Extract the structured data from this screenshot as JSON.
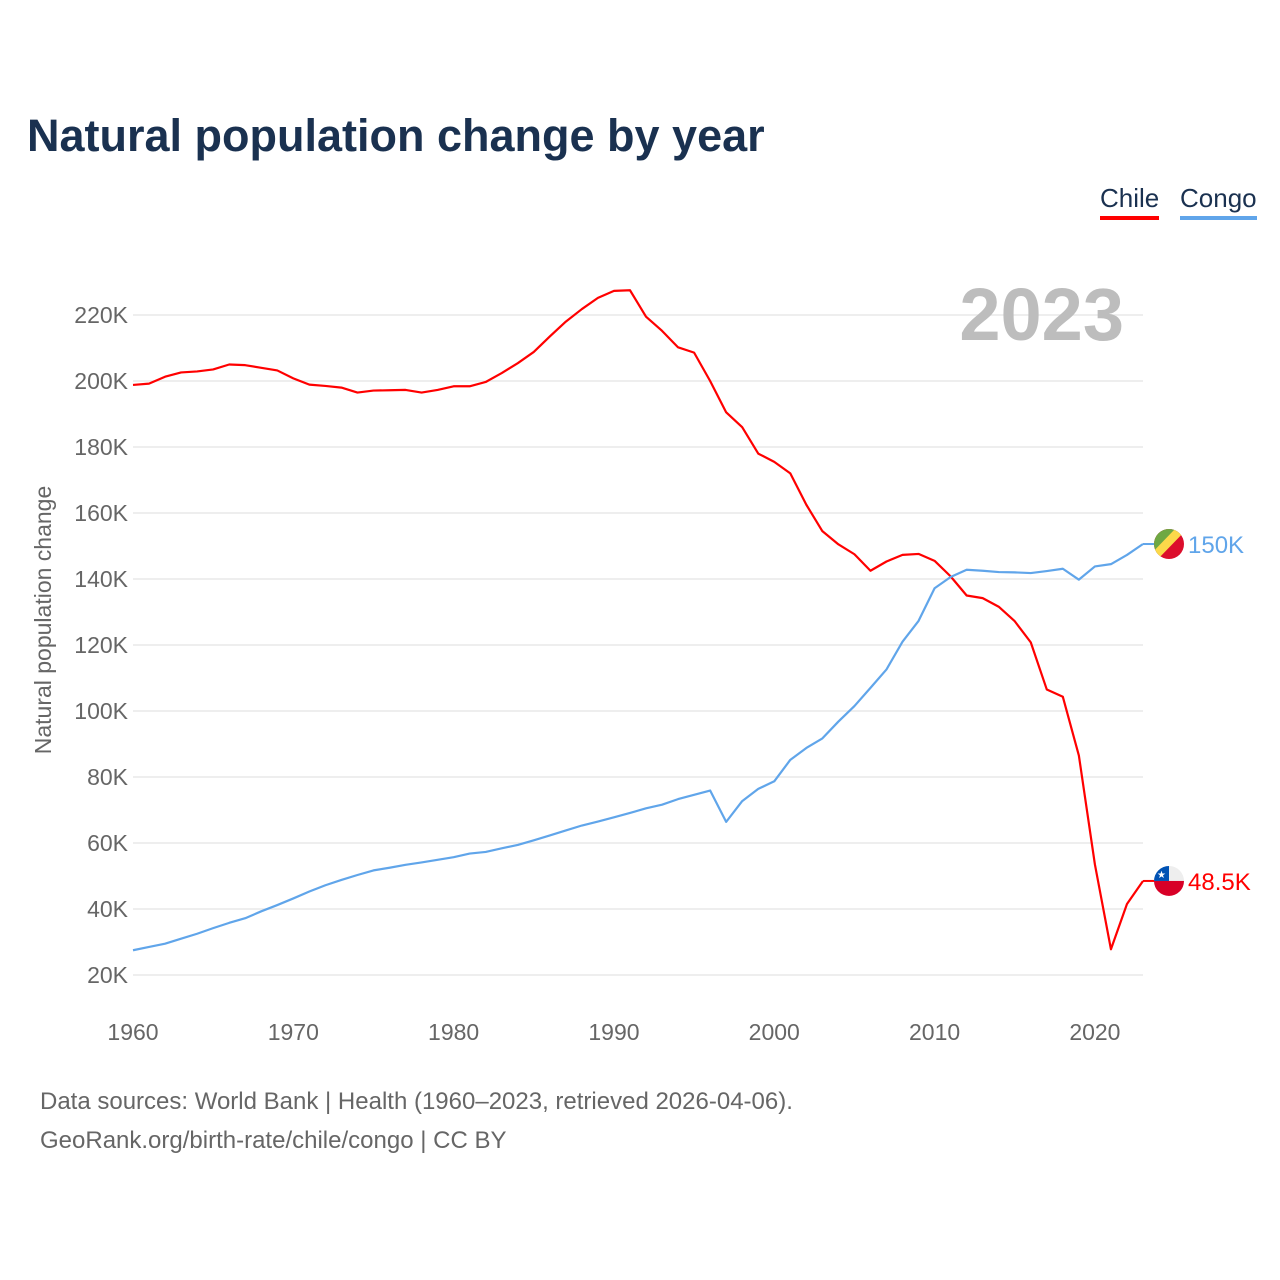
{
  "title": "Natural population change by year",
  "legend": [
    {
      "label": "Chile",
      "color": "#ff0000"
    },
    {
      "label": "Congo",
      "color": "#60a5ea"
    }
  ],
  "footer": {
    "line1": "Data sources: World Bank | Health (1960–2023, retrieved 2026-04-06).",
    "line2": "GeoRank.org/birth-rate/chile/congo | CC BY"
  },
  "chart_data": {
    "type": "line",
    "title": "Natural population change by year",
    "xlabel": "",
    "ylabel": "Natural population change",
    "year_watermark": "2023",
    "xlim": [
      1960,
      2023
    ],
    "ylim": [
      20000,
      220000
    ],
    "x_ticks": [
      1960,
      1970,
      1980,
      1990,
      2000,
      2010,
      2020
    ],
    "y_ticks": [
      20000,
      40000,
      60000,
      80000,
      100000,
      120000,
      140000,
      160000,
      180000,
      200000,
      220000
    ],
    "y_tick_labels": [
      "20K",
      "40K",
      "60K",
      "80K",
      "100K",
      "120K",
      "140K",
      "160K",
      "180K",
      "200K",
      "220K"
    ],
    "grid": true,
    "legend_position": "top-right",
    "x_start": 1960,
    "series": [
      {
        "name": "Chile",
        "color": "#ff0000",
        "end_label": "48.5K",
        "flag": "chile-flag",
        "values": [
          198.8,
          199.2,
          201.3,
          202.6,
          202.9,
          203.5,
          205.0,
          204.8,
          204.0,
          203.2,
          200.8,
          198.9,
          198.5,
          198.0,
          196.5,
          197.1,
          197.2,
          197.3,
          196.5,
          197.3,
          198.4,
          198.4,
          199.7,
          202.4,
          205.4,
          208.8,
          213.5,
          218.0,
          221.8,
          225.2,
          227.3,
          227.5,
          219.5,
          215.2,
          210.2,
          208.6,
          200.0,
          190.5,
          186.0,
          178.0,
          175.5,
          172.0,
          162.5,
          154.5,
          150.5,
          147.5,
          142.5,
          145.3,
          147.3,
          147.6,
          145.5,
          140.8,
          135.0,
          134.2,
          131.6,
          127.2,
          120.8,
          106.5,
          104.3,
          86.5,
          53.5,
          27.8,
          41.5,
          48.5
        ],
        "unit": "thousands"
      },
      {
        "name": "Congo",
        "color": "#60a5ea",
        "end_label": "150K",
        "flag": "congo-flag",
        "values": [
          27.5,
          28.5,
          29.5,
          31.0,
          32.5,
          34.2,
          35.8,
          37.2,
          39.3,
          41.2,
          43.2,
          45.3,
          47.2,
          48.8,
          50.3,
          51.7,
          52.5,
          53.4,
          54.1,
          54.9,
          55.7,
          56.8,
          57.3,
          58.4,
          59.4,
          60.8,
          62.3,
          63.8,
          65.3,
          66.5,
          67.8,
          69.1,
          70.5,
          71.6,
          73.3,
          74.6,
          75.9,
          66.4,
          72.7,
          76.4,
          78.7,
          85.2,
          88.8,
          91.7,
          96.8,
          101.5,
          107.0,
          112.6,
          121.0,
          127.3,
          137.2,
          140.6,
          142.8,
          142.5,
          142.1,
          142.0,
          141.8,
          142.4,
          143.1,
          139.8,
          143.8,
          144.5,
          147.3,
          150.6
        ],
        "unit": "thousands"
      }
    ]
  }
}
